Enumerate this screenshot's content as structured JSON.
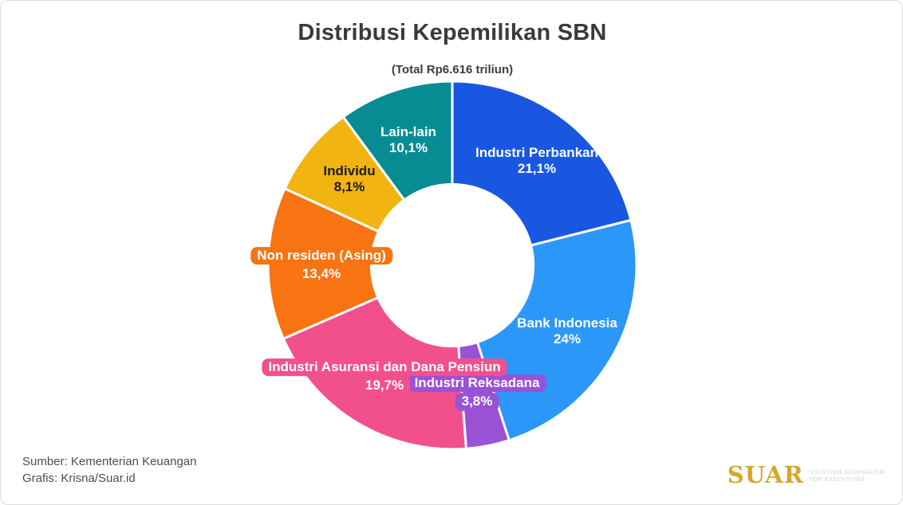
{
  "header": {
    "title": "Distribusi Kepemilikan SBN",
    "subtitle": "(Total Rp6.616 triliun)"
  },
  "chart_data": {
    "type": "pie",
    "variant": "donut",
    "title": "Distribusi Kepemilikan SBN",
    "subtitle": "(Total Rp6.616 triliun)",
    "total_label": "Rp6.616 triliun",
    "unit": "%",
    "start_angle_deg": 0,
    "direction": "clockwise",
    "inner_radius_ratio": 0.44,
    "separator_color": "#ffffff",
    "slices": [
      {
        "label": "Industri Perbankan",
        "value": 21.1,
        "pct_label": "21,1%",
        "color": "#1a57e0",
        "label_style": "inside",
        "text_color": "#ffffff"
      },
      {
        "label": "Bank Indonesia",
        "value": 24.0,
        "pct_label": "24%",
        "color": "#2b97f8",
        "label_style": "inside",
        "text_color": "#ffffff"
      },
      {
        "label": "Industri Reksadana",
        "value": 3.8,
        "pct_label": "3,8%",
        "color": "#9a52d5",
        "label_style": "highlight",
        "text_color": "#ffffff"
      },
      {
        "label": "Industri Asuransi dan Dana Pensiun",
        "value": 19.7,
        "pct_label": "19,7%",
        "color": "#f2508c",
        "label_style": "highlight",
        "text_color": "#ffffff"
      },
      {
        "label": "Non residen (Asing)",
        "value": 13.4,
        "pct_label": "13,4%",
        "color": "#f87412",
        "label_style": "highlight",
        "text_color": "#ffffff"
      },
      {
        "label": "Individu",
        "value": 8.1,
        "pct_label": "8,1%",
        "color": "#f1b411",
        "label_style": "inside",
        "text_color": "#1c1c1c"
      },
      {
        "label": "Lain-lain",
        "value": 10.1,
        "pct_label": "10,1%",
        "color": "#078c94",
        "label_style": "inside",
        "text_color": "#ffffff"
      }
    ]
  },
  "footer": {
    "source": "Sumber: Kementerian Keuangan",
    "credit": "Grafis: Krisna/Suar.id"
  },
  "logo": {
    "name": "SUAR",
    "color": "#d2a92c",
    "tagline_line1": "Solution Journalism",
    "tagline_line2": "for Executives"
  }
}
